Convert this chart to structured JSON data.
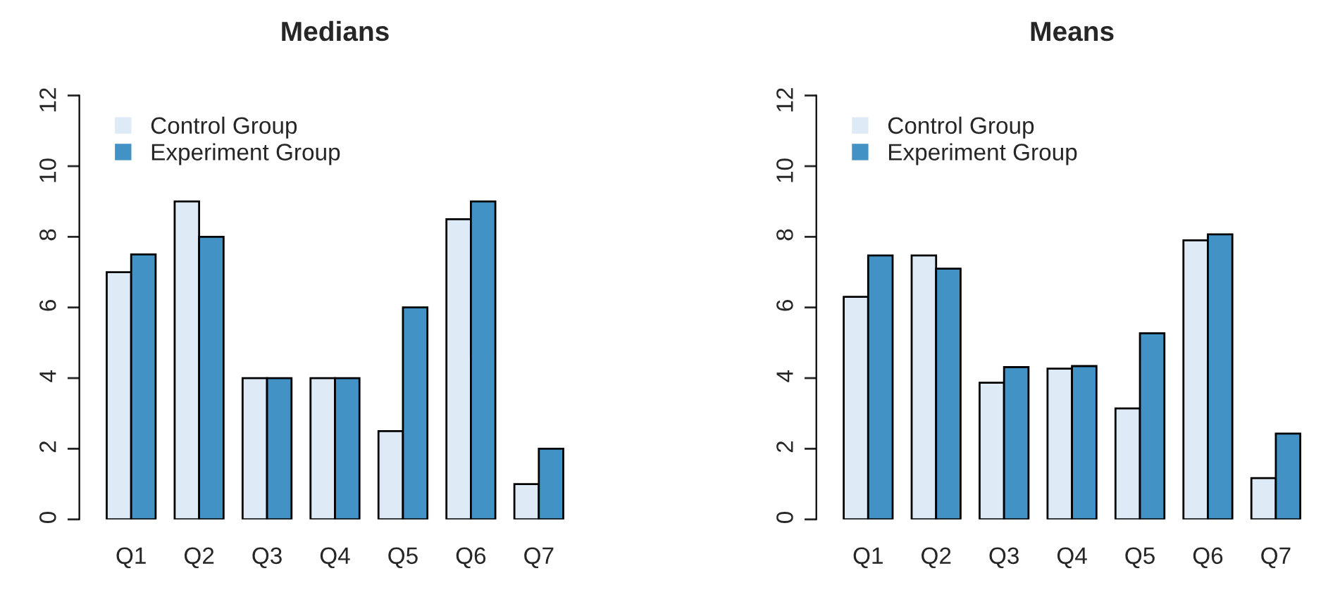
{
  "chart_data": [
    {
      "type": "bar",
      "title": "Medians",
      "categories": [
        "Q1",
        "Q2",
        "Q3",
        "Q4",
        "Q5",
        "Q6",
        "Q7"
      ],
      "series": [
        {
          "name": "Control Group",
          "color": "#deebf7",
          "values": [
            7,
            9,
            4,
            4,
            2.5,
            8.5,
            1
          ]
        },
        {
          "name": "Experiment Group",
          "color": "#4292c6",
          "values": [
            7.5,
            8,
            4,
            4,
            6,
            9,
            2
          ]
        }
      ],
      "ylim": [
        0,
        12
      ],
      "yticks": [
        0,
        2,
        4,
        6,
        8,
        10,
        12
      ],
      "legend": "top left",
      "grid": false
    },
    {
      "type": "bar",
      "title": "Means",
      "categories": [
        "Q1",
        "Q2",
        "Q3",
        "Q4",
        "Q5",
        "Q6",
        "Q7"
      ],
      "series": [
        {
          "name": "Control Group",
          "color": "#deebf7",
          "values": [
            6.3,
            7.47,
            3.87,
            4.27,
            3.14,
            7.9,
            1.17
          ]
        },
        {
          "name": "Experiment Group",
          "color": "#4292c6",
          "values": [
            7.47,
            7.1,
            4.31,
            4.34,
            5.27,
            8.07,
            2.43
          ]
        }
      ],
      "ylim": [
        0,
        12
      ],
      "yticks": [
        0,
        2,
        4,
        6,
        8,
        10,
        12
      ],
      "legend": "top left",
      "grid": false
    }
  ]
}
